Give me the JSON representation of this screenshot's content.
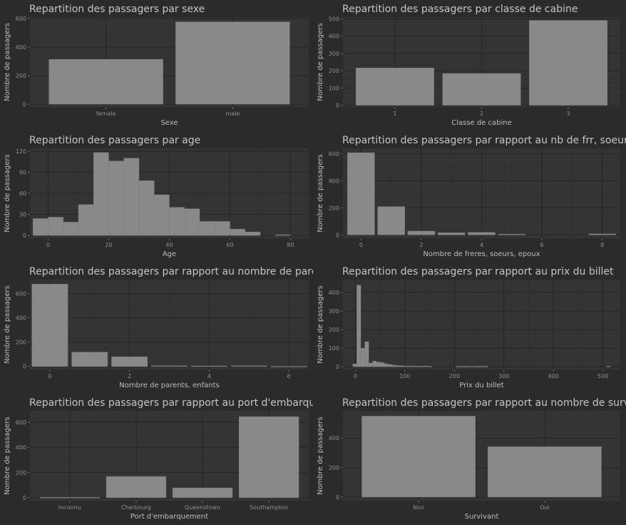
{
  "colors": {
    "background": "#2b2b2b",
    "panel": "#343434",
    "bar": "#898989",
    "text": "#c4c4c4"
  },
  "chart_data": [
    {
      "id": "sexe",
      "type": "bar",
      "title": "Repartition des passagers par sexe",
      "xlabel": "Sexe",
      "ylabel": "Nombre de passagers",
      "categories": [
        "female",
        "male"
      ],
      "values": [
        314,
        577
      ],
      "ylim": [
        -20,
        610
      ],
      "yticks": [
        0,
        200,
        400,
        600
      ],
      "grid": true
    },
    {
      "id": "classe",
      "type": "bar",
      "title": "Repartition des passagers par classe de cabine",
      "xlabel": "Classe de cabine",
      "ylabel": "Nombre de passagers",
      "categories": [
        "1",
        "2",
        "3"
      ],
      "values": [
        216,
        184,
        491
      ],
      "ylim": [
        -10,
        510
      ],
      "yticks": [
        0,
        100,
        200,
        300,
        400,
        500
      ],
      "grid": true
    },
    {
      "id": "age",
      "type": "bar",
      "title": "Repartition des passagers par age",
      "xlabel": "Age",
      "ylabel": "Nombre de passagers",
      "bins_start": -5,
      "bin_width": 5,
      "values": [
        24,
        26,
        19,
        44,
        118,
        106,
        110,
        78,
        58,
        40,
        38,
        20,
        20,
        9,
        5,
        0,
        1
      ],
      "xlim": [
        -6,
        86
      ],
      "xticks": [
        0,
        20,
        40,
        60,
        80
      ],
      "ylim": [
        -4,
        124
      ],
      "yticks": [
        0,
        30,
        60,
        90,
        120
      ],
      "grid": true
    },
    {
      "id": "sibsp",
      "type": "bar",
      "title": "Repartition des passagers par rapport au nb de frr, soeurs, epoux",
      "xlabel": "Nombre de freres, soeurs, epoux",
      "ylabel": "Nombre de passagers",
      "categories": [
        0,
        1,
        2,
        3,
        4,
        5,
        8
      ],
      "values": [
        608,
        209,
        28,
        16,
        18,
        5,
        7
      ],
      "bar_width": 0.9,
      "xlim": [
        -0.6,
        8.6
      ],
      "xticks": [
        0,
        2,
        4,
        6,
        8
      ],
      "ylim": [
        -25,
        640
      ],
      "yticks": [
        0,
        200,
        400,
        600
      ],
      "grid": true
    },
    {
      "id": "parch",
      "type": "bar",
      "title": "Repartition des passagers par rapport au nombre de parents, enfants",
      "xlabel": "Nombre de parents, enfants",
      "ylabel": "Nombre de passagers",
      "categories": [
        0,
        1,
        2,
        3,
        4,
        5,
        6
      ],
      "values": [
        678,
        118,
        80,
        5,
        4,
        5,
        1
      ],
      "bar_width": 0.9,
      "xlim": [
        -0.5,
        6.5
      ],
      "xticks": [
        0,
        2,
        4,
        6
      ],
      "ylim": [
        -25,
        715
      ],
      "yticks": [
        0,
        200,
        400,
        600
      ],
      "grid": true
    },
    {
      "id": "prix",
      "type": "bar",
      "title": "Repartition des passagers par rapport au prix du billet",
      "xlabel": "Prix du billet",
      "ylabel": "Nombre de passagers",
      "bins_start": -5,
      "bin_width": 8,
      "values": [
        15,
        440,
        100,
        135,
        20,
        30,
        25,
        22,
        15,
        12,
        8,
        6,
        5,
        3,
        4,
        3,
        3,
        2,
        4,
        2,
        0,
        0,
        0,
        0,
        0,
        0,
        2,
        3,
        1,
        2,
        2,
        1,
        3,
        2,
        0,
        0,
        0,
        0,
        0,
        0,
        0,
        0,
        0,
        0,
        0,
        0,
        0,
        0,
        0,
        0,
        0,
        0,
        0,
        0,
        0,
        0,
        0,
        0,
        0,
        0,
        0,
        0,
        0,
        0,
        3
      ],
      "xlim": [
        -25,
        535
      ],
      "xticks": [
        0,
        100,
        200,
        300,
        400,
        500
      ],
      "ylim": [
        -15,
        470
      ],
      "yticks": [
        0,
        100,
        200,
        300,
        400
      ],
      "grid": true
    },
    {
      "id": "port",
      "type": "bar",
      "title": "Repartition des passagers par rapport au port d'embarquement",
      "xlabel": "Port d'embarquement",
      "ylabel": "Nombre de passagers",
      "categories": [
        "Inconnu",
        "Cherbourg",
        "Queenstown",
        "Southampton"
      ],
      "values": [
        2,
        168,
        77,
        644
      ],
      "ylim": [
        -25,
        690
      ],
      "yticks": [
        0,
        200,
        400,
        600
      ],
      "grid": true
    },
    {
      "id": "survivant",
      "type": "bar",
      "title": "Repartition des passagers par rapport au nombre de survivants",
      "xlabel": "Survivant",
      "ylabel": "Nombre de passagers",
      "categories": [
        "Non",
        "Oui"
      ],
      "values": [
        549,
        342
      ],
      "ylim": [
        -25,
        585
      ],
      "yticks": [
        0,
        200,
        400
      ],
      "grid": true
    }
  ]
}
